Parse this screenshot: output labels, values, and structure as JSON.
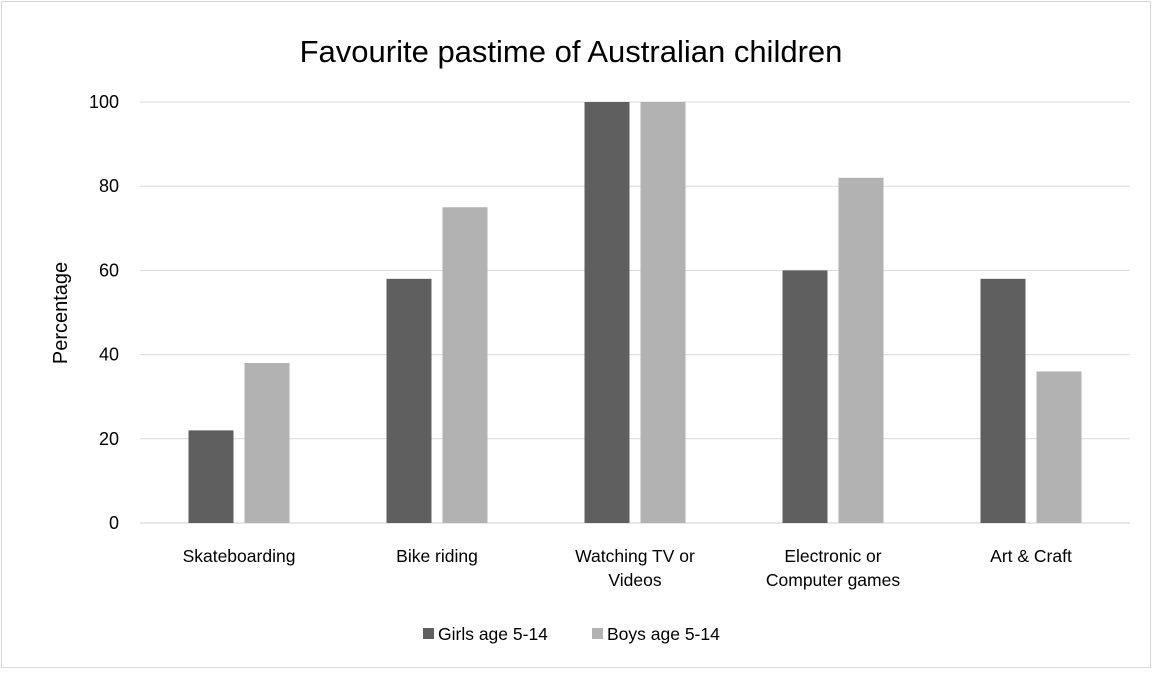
{
  "chart_data": {
    "type": "bar",
    "title": "Favourite pastime of Australian children",
    "xlabel": "",
    "ylabel": "Percentage",
    "ylim": [
      0,
      100
    ],
    "yticks": [
      0,
      20,
      40,
      60,
      80,
      100
    ],
    "grid": true,
    "legend_position": "bottom",
    "categories": [
      [
        "Skateboarding"
      ],
      [
        "Bike riding"
      ],
      [
        "Watching TV or",
        "Videos"
      ],
      [
        "Electronic or",
        "Computer games"
      ],
      [
        "Art & Craft"
      ]
    ],
    "series": [
      {
        "name": "Girls age 5-14",
        "color": "#5f5f5f",
        "values": [
          22,
          58,
          100,
          60,
          58
        ]
      },
      {
        "name": "Boys age 5-14",
        "color": "#b2b2b2",
        "values": [
          38,
          75,
          100,
          82,
          36
        ]
      }
    ]
  }
}
